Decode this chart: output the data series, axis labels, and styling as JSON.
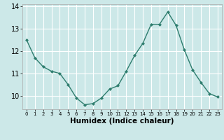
{
  "x": [
    0,
    1,
    2,
    3,
    4,
    5,
    6,
    7,
    8,
    9,
    10,
    11,
    12,
    13,
    14,
    15,
    16,
    17,
    18,
    19,
    20,
    21,
    22,
    23
  ],
  "y": [
    12.5,
    11.7,
    11.3,
    11.1,
    11.0,
    10.5,
    9.9,
    9.6,
    9.65,
    9.9,
    10.3,
    10.45,
    11.1,
    11.8,
    12.35,
    13.2,
    13.2,
    13.75,
    13.15,
    12.05,
    11.15,
    10.6,
    10.1,
    9.95
  ],
  "line_color": "#2e7d6e",
  "marker": "D",
  "marker_size": 2.0,
  "bg_color": "#cce8e8",
  "grid_color": "#ffffff",
  "xlabel": "Humidex (Indice chaleur)",
  "ylim": [
    9.4,
    14.1
  ],
  "xlim": [
    -0.5,
    23.5
  ],
  "yticks": [
    10,
    11,
    12,
    13,
    14
  ],
  "xticks": [
    0,
    1,
    2,
    3,
    4,
    5,
    6,
    7,
    8,
    9,
    10,
    11,
    12,
    13,
    14,
    15,
    16,
    17,
    18,
    19,
    20,
    21,
    22,
    23
  ],
  "xlabel_fontsize": 7.5,
  "ytick_fontsize": 7,
  "xtick_fontsize": 5.0,
  "line_width": 1.0
}
